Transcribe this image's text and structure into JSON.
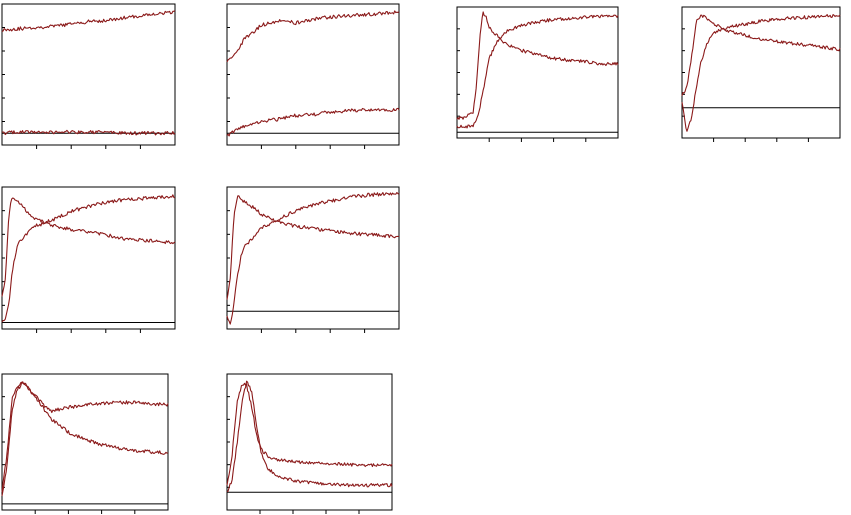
{
  "colors": {
    "line": "#8b1a1a",
    "axis": "#000000",
    "background": "#ffffff"
  },
  "chart_data": [
    {
      "type": "line",
      "panel": 1,
      "grid": false,
      "xlim": [
        0,
        100
      ],
      "ylim": [
        -0.1,
        1.1
      ],
      "x": [
        0,
        10,
        20,
        30,
        40,
        50,
        60,
        70,
        80,
        90,
        100
      ],
      "series": [
        {
          "values": [
            0.88,
            0.89,
            0.9,
            0.91,
            0.93,
            0.95,
            0.96,
            0.98,
            1.0,
            1.02,
            1.03
          ]
        },
        {
          "values": [
            0.0,
            0.01,
            0.01,
            0.01,
            0.01,
            0.01,
            0.01,
            0.0,
            0.0,
            0.0,
            0.0
          ]
        }
      ]
    },
    {
      "type": "line",
      "panel": 2,
      "grid": false,
      "xlim": [
        0,
        100
      ],
      "ylim": [
        -0.1,
        1.1
      ],
      "x": [
        0,
        5,
        10,
        20,
        30,
        40,
        50,
        60,
        70,
        80,
        90,
        100
      ],
      "series": [
        {
          "values": [
            0.62,
            0.68,
            0.8,
            0.92,
            0.96,
            0.94,
            0.97,
            0.99,
            1.0,
            1.01,
            1.02,
            1.03
          ]
        },
        {
          "values": [
            -0.02,
            0.02,
            0.06,
            0.1,
            0.12,
            0.15,
            0.16,
            0.18,
            0.19,
            0.2,
            0.2,
            0.2
          ]
        }
      ]
    },
    {
      "type": "line",
      "panel": 3,
      "grid": false,
      "xlim": [
        0,
        100
      ],
      "ylim": [
        -0.05,
        1.1
      ],
      "x": [
        0,
        5,
        10,
        12,
        14,
        16,
        18,
        20,
        25,
        30,
        40,
        50,
        60,
        70,
        80,
        90,
        100
      ],
      "series": [
        {
          "values": [
            0.12,
            0.13,
            0.18,
            0.4,
            0.8,
            1.05,
            1.02,
            0.92,
            0.85,
            0.78,
            0.72,
            0.68,
            0.65,
            0.63,
            0.62,
            0.6,
            0.6
          ]
        },
        {
          "values": [
            0.05,
            0.05,
            0.06,
            0.1,
            0.2,
            0.35,
            0.5,
            0.65,
            0.8,
            0.88,
            0.94,
            0.97,
            0.99,
            1.0,
            1.01,
            1.02,
            1.02
          ]
        }
      ]
    },
    {
      "type": "line",
      "panel": 4,
      "grid": false,
      "xlim": [
        0,
        100
      ],
      "ylim": [
        -0.3,
        1.0
      ],
      "x": [
        0,
        3,
        6,
        9,
        12,
        15,
        18,
        22,
        30,
        40,
        50,
        60,
        70,
        80,
        90,
        100
      ],
      "series": [
        {
          "values": [
            0.12,
            0.2,
            0.5,
            0.85,
            0.92,
            0.89,
            0.85,
            0.82,
            0.76,
            0.72,
            0.68,
            0.66,
            0.64,
            0.62,
            0.6,
            0.58
          ]
        },
        {
          "values": [
            0.05,
            -0.25,
            -0.1,
            0.2,
            0.45,
            0.6,
            0.7,
            0.76,
            0.8,
            0.83,
            0.86,
            0.88,
            0.89,
            0.9,
            0.91,
            0.91
          ]
        }
      ]
    },
    {
      "type": "line",
      "panel": 5,
      "grid": false,
      "xlim": [
        0,
        100
      ],
      "ylim": [
        -0.05,
        1.05
      ],
      "x": [
        0,
        2,
        4,
        6,
        8,
        10,
        15,
        20,
        30,
        40,
        50,
        60,
        70,
        80,
        90,
        100
      ],
      "series": [
        {
          "values": [
            0.2,
            0.35,
            0.85,
            0.98,
            0.95,
            0.93,
            0.85,
            0.8,
            0.75,
            0.72,
            0.7,
            0.68,
            0.65,
            0.64,
            0.63,
            0.62
          ]
        },
        {
          "values": [
            0.0,
            0.02,
            0.15,
            0.4,
            0.55,
            0.62,
            0.7,
            0.75,
            0.8,
            0.86,
            0.9,
            0.93,
            0.95,
            0.96,
            0.97,
            0.98
          ]
        }
      ]
    },
    {
      "type": "line",
      "panel": 6,
      "grid": false,
      "xlim": [
        0,
        100
      ],
      "ylim": [
        -0.15,
        1.05
      ],
      "x": [
        0,
        2,
        4,
        6,
        8,
        10,
        15,
        20,
        30,
        40,
        50,
        60,
        70,
        80,
        90,
        100
      ],
      "series": [
        {
          "values": [
            0.1,
            0.3,
            0.8,
            0.98,
            0.95,
            0.93,
            0.88,
            0.82,
            0.75,
            0.72,
            0.7,
            0.68,
            0.66,
            0.65,
            0.64,
            0.63
          ]
        },
        {
          "values": [
            -0.05,
            -0.1,
            0.05,
            0.3,
            0.45,
            0.55,
            0.62,
            0.7,
            0.78,
            0.85,
            0.9,
            0.93,
            0.96,
            0.98,
            0.99,
            1.0
          ]
        }
      ]
    },
    {
      "type": "line",
      "panel": 7,
      "grid": false,
      "xlim": [
        0,
        100
      ],
      "ylim": [
        -0.05,
        1.05
      ],
      "x": [
        0,
        3,
        6,
        9,
        12,
        15,
        18,
        22,
        26,
        30,
        40,
        50,
        60,
        70,
        80,
        90,
        100
      ],
      "series": [
        {
          "values": [
            0.1,
            0.4,
            0.85,
            0.95,
            0.98,
            0.95,
            0.9,
            0.85,
            0.78,
            0.75,
            0.78,
            0.8,
            0.81,
            0.82,
            0.82,
            0.81,
            0.8
          ]
        },
        {
          "values": [
            0.05,
            0.3,
            0.75,
            0.92,
            0.97,
            0.96,
            0.9,
            0.83,
            0.75,
            0.68,
            0.58,
            0.52,
            0.48,
            0.45,
            0.43,
            0.42,
            0.41
          ]
        }
      ]
    },
    {
      "type": "line",
      "panel": 8,
      "grid": false,
      "xlim": [
        0,
        100
      ],
      "ylim": [
        -0.15,
        1.0
      ],
      "x": [
        0,
        3,
        6,
        9,
        12,
        15,
        18,
        21,
        25,
        30,
        40,
        50,
        60,
        70,
        80,
        90,
        100
      ],
      "series": [
        {
          "values": [
            0.05,
            0.3,
            0.75,
            0.92,
            0.9,
            0.72,
            0.48,
            0.36,
            0.3,
            0.28,
            0.26,
            0.25,
            0.24,
            0.24,
            0.23,
            0.23,
            0.23
          ]
        },
        {
          "values": [
            0.0,
            0.1,
            0.4,
            0.75,
            0.95,
            0.85,
            0.55,
            0.32,
            0.2,
            0.14,
            0.1,
            0.08,
            0.07,
            0.06,
            0.06,
            0.06,
            0.06
          ]
        }
      ]
    }
  ]
}
